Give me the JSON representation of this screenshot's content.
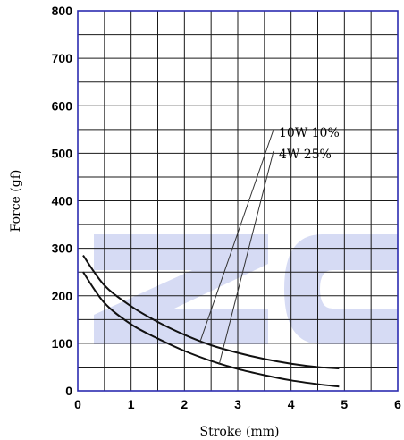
{
  "chart_data": {
    "type": "line",
    "xlabel": "Stroke (mm)",
    "ylabel": "Force (gf)",
    "xlim": [
      0,
      6
    ],
    "ylim": [
      0,
      800
    ],
    "xticks": [
      0,
      1,
      2,
      3,
      4,
      5,
      6
    ],
    "yticks": [
      0,
      100,
      200,
      300,
      400,
      500,
      600,
      700,
      800
    ],
    "grid": true,
    "legend_position": "upper-right (text labels with leader lines)",
    "series": [
      {
        "name": "10W 10%",
        "x": [
          0.1,
          0.5,
          1.0,
          1.5,
          2.0,
          2.5,
          3.0,
          3.5,
          4.0,
          4.5,
          4.9
        ],
        "y": [
          285,
          222,
          178,
          145,
          118,
          96,
          80,
          67,
          57,
          50,
          47
        ]
      },
      {
        "name": "4W 25%",
        "x": [
          0.1,
          0.5,
          1.0,
          1.5,
          2.0,
          2.5,
          3.0,
          3.5,
          4.0,
          4.5,
          4.9
        ],
        "y": [
          250,
          185,
          140,
          110,
          84,
          63,
          46,
          33,
          22,
          14,
          9
        ]
      }
    ],
    "colors": {
      "frame": "#2c2cb0",
      "grid": "#1a1a1a",
      "curves": "#111111",
      "watermark": "#c8cff0"
    }
  }
}
